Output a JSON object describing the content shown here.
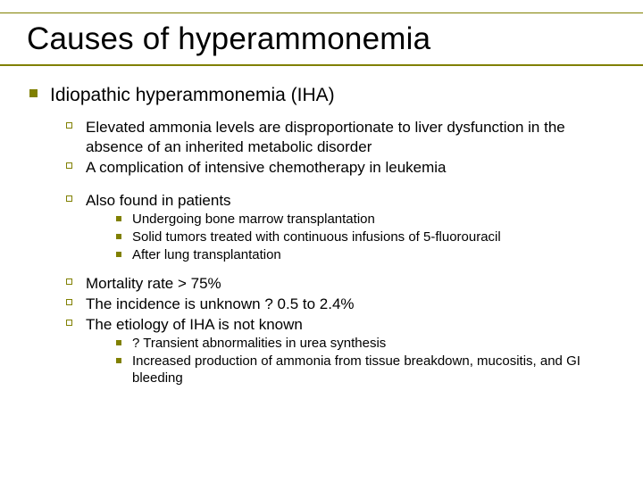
{
  "colors": {
    "accent": "#808000",
    "text": "#000000",
    "background": "#ffffff"
  },
  "slide": {
    "title": "Causes of hyperammonemia",
    "title_fontsize": 35,
    "l1": {
      "text": "Idiopathic hyperammonemia (IHA)",
      "fontsize": 21
    },
    "l2_a": "Elevated ammonia levels are disproportionate to liver dysfunction in the absence of an inherited metabolic disorder",
    "l2_b": "A complication of intensive chemotherapy in leukemia",
    "l2_c": "Also found in patients",
    "l3_c1": "Undergoing bone marrow transplantation",
    "l3_c2": "Solid tumors treated with continuous infusions of 5-fluorouracil",
    "l3_c3": "After lung transplantation",
    "l2_d": "Mortality rate > 75%",
    "l2_e": "The incidence is unknown ? 0.5 to 2.4%",
    "l2_f": "The etiology of IHA is not known",
    "l3_f1": "? Transient abnormalities in urea synthesis",
    "l3_f2": "Increased production of ammonia from tissue breakdown, mucositis, and GI bleeding"
  }
}
